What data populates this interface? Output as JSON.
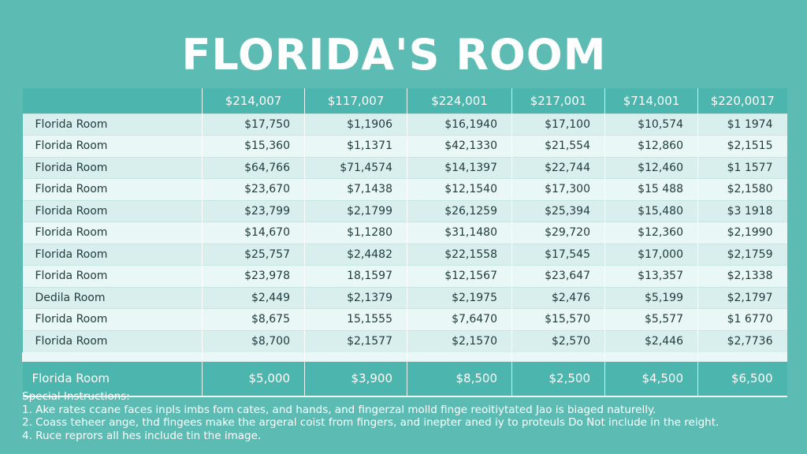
{
  "title": "FLORIDA'S ROOM",
  "table": {
    "headers": [
      "",
      "$214,007",
      "$117,007",
      "$224,001",
      "$217,001",
      "$714,001",
      "$220,0017"
    ],
    "rows": [
      [
        "Florida Room",
        "$17,750",
        "$1,1906",
        "$16,1940",
        "$17,100",
        "$10,574",
        "$1 1974"
      ],
      [
        "Florida Room",
        "$15,360",
        "$1,1371",
        "$42,1330",
        "$21,554",
        "$12,860",
        "$2,1515"
      ],
      [
        "Florida Room",
        "$64,766",
        "$71,4574",
        "$14,1397",
        "$22,744",
        "$12,460",
        "$1 1577"
      ],
      [
        "Florida Room",
        "$23,670",
        "$7,1438",
        "$12,1540",
        "$17,300",
        "$15 488",
        "$2,1580"
      ],
      [
        "Florida Room",
        "$23,799",
        "$2,1799",
        "$26,1259",
        "$25,394",
        "$15,480",
        "$3 1918"
      ],
      [
        "Florida Room",
        "$14,670",
        "$1,1280",
        "$31,1480",
        "$29,720",
        "$12,360",
        "$2,1990"
      ],
      [
        "Florida Room",
        "$25,757",
        "$2,4482",
        "$22,1558",
        "$17,545",
        "$17,000",
        "$2,1759"
      ],
      [
        "Florida Room",
        "$23,978",
        "18,1597",
        "$12,1567",
        "$23,647",
        "$13,357",
        "$2,1338"
      ],
      [
        "Dedila Room",
        "$2,449",
        "$2,1379",
        "$2,1975",
        "$2,476",
        "$5,199",
        "$2,1797"
      ],
      [
        "Florida Room",
        "$8,675",
        "15,1555",
        "$7,6470",
        "$15,570",
        "$5,577",
        "$1 6770"
      ],
      [
        "Florida Room",
        "$8,700",
        "$2,1577",
        "$2,1570",
        "$2,570",
        "$2,446",
        "$2,7736"
      ]
    ],
    "footer": [
      "Florida Room",
      "$5,000",
      "$3,900",
      "$8,500",
      "$2,500",
      "$4,500",
      "$6,500"
    ]
  },
  "notes": {
    "heading": "Special Instructions:",
    "items": [
      "1.  Ake rates ccane faces inpls imbs fom cates, and hands, and fingerzal molld finge reoitiytated Jao is biaged naturelly.",
      "2.  Coass teheer ange, thd fingees make the argeral coist from fingers, and inepter aned iy to proteuls Do Not include in the reight.",
      "4.  Ruce reprors all hes include tin the image."
    ]
  }
}
